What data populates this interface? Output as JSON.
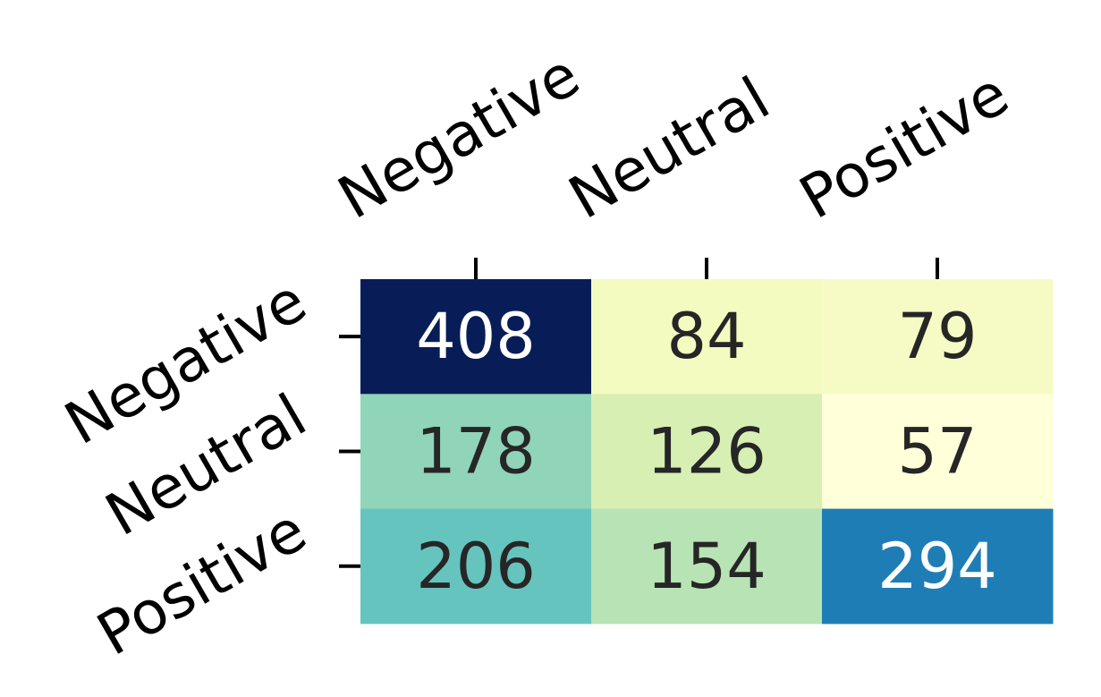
{
  "chart_data": {
    "type": "heatmap",
    "title": "",
    "xlabel": "",
    "ylabel": "",
    "x_categories": [
      "Negative",
      "Neutral",
      "Positive"
    ],
    "y_categories": [
      "Negative",
      "Neutral",
      "Positive"
    ],
    "values": [
      [
        408,
        84,
        79
      ],
      [
        178,
        126,
        57
      ],
      [
        206,
        154,
        294
      ]
    ],
    "x_tick_position": "top",
    "colormap": "YlGnBu",
    "colorbar": false,
    "grid": false,
    "legend": "none"
  }
}
